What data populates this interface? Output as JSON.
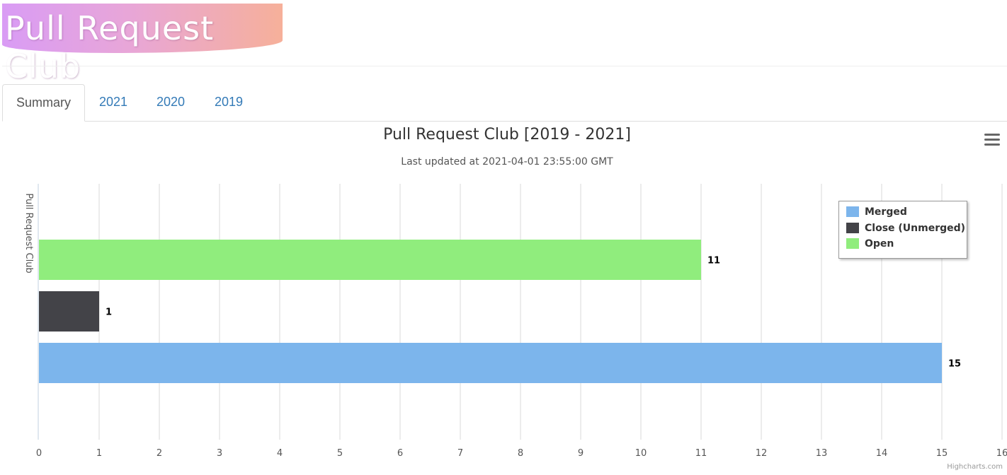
{
  "header": {
    "logo_text": "Pull Request Club"
  },
  "tabs": [
    {
      "label": "Summary",
      "active": true
    },
    {
      "label": "2021",
      "active": false
    },
    {
      "label": "2020",
      "active": false
    },
    {
      "label": "2019",
      "active": false
    }
  ],
  "credits": "Highcharts.com",
  "chart_data": {
    "type": "bar",
    "orientation": "horizontal",
    "title": "Pull Request Club [2019 - 2021]",
    "subtitle": "Last updated at 2021-04-01 23:55:00 GMT",
    "categories": [
      "Pull Request Club"
    ],
    "ylabel": "",
    "xlabel": "Pull Request Club",
    "xlim": [
      0,
      16
    ],
    "ticks": [
      0,
      1,
      2,
      3,
      4,
      5,
      6,
      7,
      8,
      9,
      10,
      11,
      12,
      13,
      14,
      15,
      16
    ],
    "grid": true,
    "legend_position": "top-right",
    "series": [
      {
        "name": "Merged",
        "values": [
          15
        ],
        "color": "#7cb5ec"
      },
      {
        "name": "Close (Unmerged)",
        "values": [
          1
        ],
        "color": "#434348"
      },
      {
        "name": "Open",
        "values": [
          11
        ],
        "color": "#90ed7d"
      }
    ]
  }
}
